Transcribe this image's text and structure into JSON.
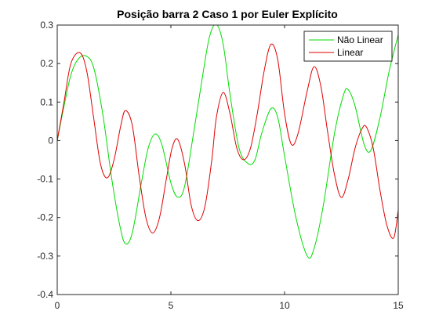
{
  "chart_data": {
    "type": "line",
    "title": "Posição barra 2 Caso 1 por Euler Explícito",
    "xlabel": "",
    "ylabel": "",
    "xlim": [
      0,
      15
    ],
    "ylim": [
      -0.4,
      0.3
    ],
    "x_ticks": [
      "0",
      "5",
      "10",
      "15"
    ],
    "y_ticks": [
      "-0.4",
      "-0.3",
      "-0.2",
      "-0.1",
      "0",
      "0.1",
      "0.2",
      "0.3"
    ],
    "grid": false,
    "legend_position": "top-right",
    "series": [
      {
        "name": "Não Linear",
        "color": "#00dd00",
        "points": [
          [
            0,
            0
          ],
          [
            0.3,
            0.09
          ],
          [
            0.6,
            0.17
          ],
          [
            0.9,
            0.21
          ],
          [
            1.25,
            0.22
          ],
          [
            1.6,
            0.19
          ],
          [
            2.0,
            0.07
          ],
          [
            2.4,
            -0.1
          ],
          [
            2.75,
            -0.22
          ],
          [
            3.0,
            -0.268
          ],
          [
            3.3,
            -0.24
          ],
          [
            3.7,
            -0.11
          ],
          [
            4.0,
            -0.02
          ],
          [
            4.3,
            0.017
          ],
          [
            4.6,
            -0.01
          ],
          [
            5.0,
            -0.11
          ],
          [
            5.3,
            -0.147
          ],
          [
            5.6,
            -0.12
          ],
          [
            6.0,
            0.02
          ],
          [
            6.4,
            0.17
          ],
          [
            6.7,
            0.27
          ],
          [
            7.0,
            0.302
          ],
          [
            7.3,
            0.25
          ],
          [
            7.6,
            0.12
          ],
          [
            8.0,
            -0.02
          ],
          [
            8.4,
            -0.06
          ],
          [
            8.7,
            -0.05
          ],
          [
            9.0,
            0.02
          ],
          [
            9.4,
            0.083
          ],
          [
            9.7,
            0.06
          ],
          [
            10.0,
            -0.04
          ],
          [
            10.5,
            -0.2
          ],
          [
            11.0,
            -0.3
          ],
          [
            11.3,
            -0.28
          ],
          [
            11.7,
            -0.17
          ],
          [
            12.2,
            0.02
          ],
          [
            12.6,
            0.12
          ],
          [
            12.8,
            0.132
          ],
          [
            13.1,
            0.09
          ],
          [
            13.5,
            -0.01
          ],
          [
            13.8,
            -0.025
          ],
          [
            14.2,
            0.06
          ],
          [
            14.6,
            0.18
          ],
          [
            15.0,
            0.275
          ]
        ]
      },
      {
        "name": "Linear",
        "color": "#e00000",
        "points": [
          [
            0,
            0
          ],
          [
            0.3,
            0.1
          ],
          [
            0.6,
            0.2
          ],
          [
            1.0,
            0.228
          ],
          [
            1.3,
            0.18
          ],
          [
            1.6,
            0.06
          ],
          [
            1.9,
            -0.06
          ],
          [
            2.2,
            -0.097
          ],
          [
            2.5,
            -0.05
          ],
          [
            2.8,
            0.04
          ],
          [
            3.0,
            0.078
          ],
          [
            3.3,
            0.04
          ],
          [
            3.6,
            -0.09
          ],
          [
            3.9,
            -0.2
          ],
          [
            4.2,
            -0.24
          ],
          [
            4.5,
            -0.2
          ],
          [
            4.8,
            -0.1
          ],
          [
            5.05,
            -0.02
          ],
          [
            5.3,
            0.003
          ],
          [
            5.6,
            -0.06
          ],
          [
            5.9,
            -0.17
          ],
          [
            6.2,
            -0.208
          ],
          [
            6.5,
            -0.17
          ],
          [
            6.8,
            -0.05
          ],
          [
            7.0,
            0.06
          ],
          [
            7.3,
            0.125
          ],
          [
            7.6,
            0.07
          ],
          [
            7.9,
            -0.02
          ],
          [
            8.2,
            -0.05
          ],
          [
            8.5,
            -0.02
          ],
          [
            8.8,
            0.07
          ],
          [
            9.1,
            0.18
          ],
          [
            9.4,
            0.25
          ],
          [
            9.7,
            0.21
          ],
          [
            10.0,
            0.07
          ],
          [
            10.3,
            -0.01
          ],
          [
            10.6,
            0.02
          ],
          [
            11.0,
            0.13
          ],
          [
            11.3,
            0.192
          ],
          [
            11.6,
            0.14
          ],
          [
            11.9,
            0.02
          ],
          [
            12.2,
            -0.09
          ],
          [
            12.5,
            -0.148
          ],
          [
            12.8,
            -0.1
          ],
          [
            13.1,
            -0.02
          ],
          [
            13.4,
            0.03
          ],
          [
            13.6,
            0.035
          ],
          [
            13.9,
            -0.02
          ],
          [
            14.2,
            -0.13
          ],
          [
            14.5,
            -0.22
          ],
          [
            14.8,
            -0.253
          ],
          [
            15.0,
            -0.18
          ]
        ]
      }
    ]
  }
}
